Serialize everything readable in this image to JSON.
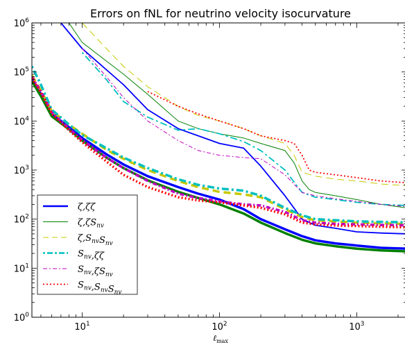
{
  "chart_data": {
    "type": "line",
    "title": "Errors on fNL for neutrino velocity isocurvature",
    "xlabel": "ℓ_max",
    "ylabel": "",
    "xscale": "log",
    "yscale": "log",
    "xlim": [
      4.3,
      2300
    ],
    "ylim": [
      1,
      1000000
    ],
    "grid": false,
    "legend_position": "lower-left",
    "x_ticks": [
      {
        "value": 10,
        "base": "10",
        "exp": "1"
      },
      {
        "value": 100,
        "base": "10",
        "exp": "2"
      },
      {
        "value": 1000,
        "base": "10",
        "exp": "3"
      }
    ],
    "y_ticks": [
      {
        "value": 1,
        "base": "10",
        "exp": "0"
      },
      {
        "value": 10,
        "base": "10",
        "exp": "1"
      },
      {
        "value": 100,
        "base": "10",
        "exp": "2"
      },
      {
        "value": 1000,
        "base": "10",
        "exp": "3"
      },
      {
        "value": 10000,
        "base": "10",
        "exp": "4"
      },
      {
        "value": 100000,
        "base": "10",
        "exp": "5"
      },
      {
        "value": 1000000,
        "base": "10",
        "exp": "6"
      }
    ],
    "series": [
      {
        "name": "ζ,ζζ",
        "group": "lower",
        "color": "#0000ff",
        "dash": "solid",
        "width": 3.5,
        "x": [
          4.3,
          5,
          6,
          8,
          10,
          15,
          20,
          30,
          50,
          70,
          100,
          150,
          200,
          300,
          400,
          500,
          700,
          1000,
          1500,
          2300
        ],
        "y": [
          70000,
          35000,
          14000,
          7500,
          4500,
          2100,
          1300,
          750,
          450,
          330,
          250,
          160,
          100,
          62,
          45,
          37,
          32,
          29,
          26,
          25
        ]
      },
      {
        "name": "ζ,ζζ",
        "group": "upper",
        "color": "#0000ff",
        "dash": "solid",
        "width": 1.8,
        "x": [
          7,
          10,
          20,
          30,
          50,
          70,
          100,
          150,
          200,
          300,
          400,
          500,
          700,
          1000,
          1500,
          2300
        ],
        "y": [
          1000000,
          300000,
          55000,
          17000,
          7000,
          5000,
          3500,
          2800,
          1200,
          300,
          100,
          75,
          65,
          55,
          52,
          50
        ]
      },
      {
        "name": "ζ,ζS_nv",
        "group": "lower",
        "color": "#008000",
        "dash": "solid",
        "width": 3.5,
        "x": [
          4.3,
          5,
          6,
          8,
          10,
          15,
          20,
          30,
          50,
          70,
          100,
          150,
          200,
          300,
          400,
          500,
          700,
          1000,
          1500,
          2300
        ],
        "y": [
          65000,
          32000,
          12500,
          6800,
          4000,
          1800,
          1100,
          620,
          360,
          270,
          200,
          130,
          85,
          52,
          38,
          32,
          28,
          25,
          23,
          22
        ]
      },
      {
        "name": "ζ,ζS_nv",
        "group": "upper",
        "color": "#008000",
        "dash": "solid",
        "width": 1.0,
        "x": [
          8,
          10,
          20,
          30,
          50,
          70,
          100,
          150,
          200,
          300,
          350,
          400,
          450,
          500,
          700,
          1000,
          1500,
          2300
        ],
        "y": [
          1000000,
          400000,
          90000,
          35000,
          10000,
          7000,
          5500,
          4500,
          3500,
          2500,
          1400,
          600,
          400,
          350,
          300,
          250,
          200,
          170
        ]
      },
      {
        "name": "ζ,S_nvS_nv",
        "group": "lower",
        "color": "#c8c800",
        "dash": "10,6",
        "width": 3.5,
        "x": [
          4.3,
          5,
          6,
          8,
          10,
          15,
          20,
          30,
          50,
          70,
          100,
          150,
          200,
          300,
          400,
          500,
          700,
          1000,
          1500,
          2300
        ],
        "y": [
          85000,
          42000,
          16000,
          8500,
          5500,
          2600,
          1700,
          1000,
          600,
          450,
          360,
          320,
          280,
          160,
          110,
          95,
          90,
          85,
          82,
          80
        ]
      },
      {
        "name": "ζ,S_nvS_nv",
        "group": "upper",
        "color": "#c8c800",
        "dash": "10,6",
        "width": 1.0,
        "x": [
          10,
          15,
          20,
          30,
          50,
          70,
          100,
          150,
          200,
          300,
          350,
          400,
          500,
          700,
          1000,
          1500,
          2300
        ],
        "y": [
          1000000,
          300000,
          130000,
          50000,
          20000,
          13000,
          10000,
          7000,
          5000,
          3500,
          2000,
          900,
          750,
          650,
          600,
          520,
          480
        ]
      },
      {
        "name": "S_nv,ζζ",
        "group": "lower",
        "color": "#00bfbf",
        "dash": "3,4,10,4",
        "width": 3.5,
        "x": [
          4.3,
          5,
          6,
          8,
          10,
          15,
          20,
          30,
          50,
          70,
          100,
          150,
          200,
          300,
          400,
          500,
          700,
          1000,
          1500,
          2300
        ],
        "y": [
          130000,
          55000,
          17000,
          8500,
          5200,
          2800,
          1800,
          1100,
          650,
          500,
          420,
          380,
          300,
          170,
          120,
          100,
          95,
          90,
          88,
          86
        ]
      },
      {
        "name": "S_nv,ζζ",
        "group": "upper",
        "color": "#00bfbf",
        "dash": "3,4,10,4",
        "width": 1.8,
        "x": [
          10,
          15,
          20,
          30,
          50,
          70,
          100,
          150,
          200,
          300,
          400,
          500,
          700,
          1000,
          1500,
          2300
        ],
        "y": [
          250000,
          70000,
          25000,
          12000,
          6500,
          7000,
          5500,
          3800,
          2500,
          1000,
          350,
          280,
          250,
          220,
          200,
          190
        ]
      },
      {
        "name": "S_nv,ζS_nv",
        "group": "lower",
        "color": "#bf00bf",
        "dash": "6,3,2,3",
        "width": 3.5,
        "x": [
          4.3,
          5,
          6,
          8,
          10,
          15,
          20,
          30,
          50,
          70,
          100,
          150,
          200,
          300,
          400,
          500,
          700,
          1000,
          1500,
          2300
        ],
        "y": [
          80000,
          40000,
          15000,
          7000,
          4100,
          1800,
          1100,
          600,
          330,
          270,
          230,
          200,
          190,
          140,
          95,
          85,
          80,
          78,
          76,
          75
        ]
      },
      {
        "name": "S_nv,ζS_nv",
        "group": "upper",
        "color": "#bf00bf",
        "dash": "6,3,2,3",
        "width": 1.0,
        "x": [
          10,
          15,
          20,
          30,
          50,
          70,
          100,
          150,
          200,
          300,
          400,
          500,
          700,
          1000,
          1500,
          2300
        ],
        "y": [
          300000,
          80000,
          30000,
          10000,
          4000,
          2500,
          2000,
          1800,
          1700,
          800,
          350,
          300,
          260,
          230,
          200,
          180
        ]
      },
      {
        "name": "S_nv,S_nvS_nv",
        "group": "lower",
        "color": "#ff0000",
        "dash": "2,3",
        "width": 3.5,
        "x": [
          4.3,
          5,
          6,
          8,
          10,
          15,
          20,
          30,
          50,
          70,
          100,
          150,
          200,
          300,
          400,
          500,
          700,
          1000,
          1500,
          2300
        ],
        "y": [
          75000,
          38000,
          14000,
          6500,
          3700,
          1500,
          800,
          450,
          280,
          240,
          220,
          190,
          170,
          125,
          85,
          78,
          74,
          72,
          70,
          68
        ]
      },
      {
        "name": "S_nv,S_nvS_nv",
        "group": "upper",
        "color": "#ff0000",
        "dash": "2,3",
        "width": 1.8,
        "x": [
          30,
          50,
          70,
          100,
          150,
          200,
          300,
          350,
          400,
          450,
          500,
          700,
          1000,
          1500,
          2300
        ],
        "y": [
          40000,
          20000,
          14000,
          10000,
          7000,
          5000,
          4000,
          3500,
          2000,
          1000,
          900,
          800,
          700,
          600,
          550
        ]
      }
    ],
    "legend": [
      {
        "label": "ζ,ζζ",
        "color": "#0000ff",
        "dash": "solid",
        "width": 2.5
      },
      {
        "label": "ζ,ζS_nv",
        "color": "#008000",
        "dash": "solid",
        "width": 1.0
      },
      {
        "label": "ζ,S_nvS_nv",
        "color": "#c8c800",
        "dash": "8,5",
        "width": 1.0
      },
      {
        "label": "S_nv,ζζ",
        "color": "#00bfbf",
        "dash": "3,3,8,3",
        "width": 2.5
      },
      {
        "label": "S_nv,ζS_nv",
        "color": "#bf00bf",
        "dash": "6,3,2,3",
        "width": 1.0
      },
      {
        "label": "S_nv,S_nvS_nv",
        "color": "#ff0000",
        "dash": "2,3",
        "width": 1.8
      }
    ]
  }
}
